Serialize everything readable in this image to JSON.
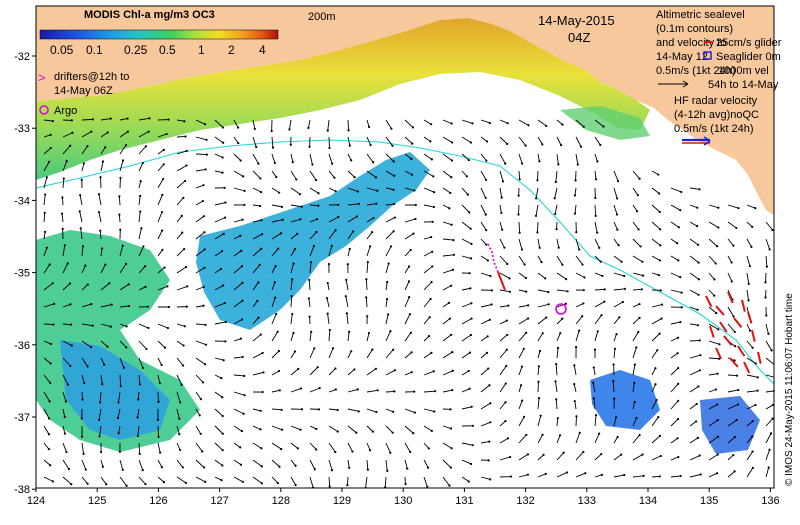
{
  "header": {
    "title": "MODIS Chl-a mg/m3 OC3",
    "isobath_label": "200m",
    "date": "14-May-2015",
    "time": "04Z"
  },
  "colorbar": {
    "ticks": [
      "0.05",
      "0.1",
      "0.25",
      "0.5",
      "1",
      "2",
      "4"
    ],
    "colors": [
      "#1a1aa8",
      "#1e50e6",
      "#1e9ee6",
      "#22c8c0",
      "#3cd060",
      "#a8e040",
      "#f0e020",
      "#f0a020",
      "#e05a10",
      "#b01008"
    ]
  },
  "legend_left": {
    "drifters_line1": "drifters@12h to",
    "drifters_line2": "14-May 06Z",
    "argo": "Argo",
    "drifter_color": "#e000e0",
    "argo_color": "#e000e0"
  },
  "legend_right": {
    "alt_line1": "Altimetric sealevel",
    "alt_line2": "(0.1m contours)",
    "alt_line3": "and velocity to",
    "alt_line4": "14-May 12",
    "alt_line5": "0.5m/s (1kt 24h)",
    "glider_line1": "25cm/s glider",
    "glider_line2": "Seaglider 0m",
    "glider_line3": "1000m vel",
    "glider_line4": "54h to 14-May",
    "hf_line1": "HF radar velocity",
    "hf_line2": "(4-12h avg)noQC",
    "hf_line3": "0.5m/s (1kt 24h)",
    "hf_color": "#2020e0",
    "hf_vectors_color": "#e01010"
  },
  "credit": "© IMOS 24-May-2015 11:06:07 Hobart time",
  "axes": {
    "x_ticks": [
      "124",
      "125",
      "126",
      "127",
      "128",
      "129",
      "130",
      "131",
      "132",
      "133",
      "134",
      "135",
      "136"
    ],
    "y_ticks": [
      "-32",
      "-33",
      "-34",
      "-35",
      "-36",
      "-37",
      "-38"
    ]
  },
  "colors": {
    "land": "#f7c89c",
    "isobath": "#22d8d8",
    "vectors": "#000000"
  }
}
